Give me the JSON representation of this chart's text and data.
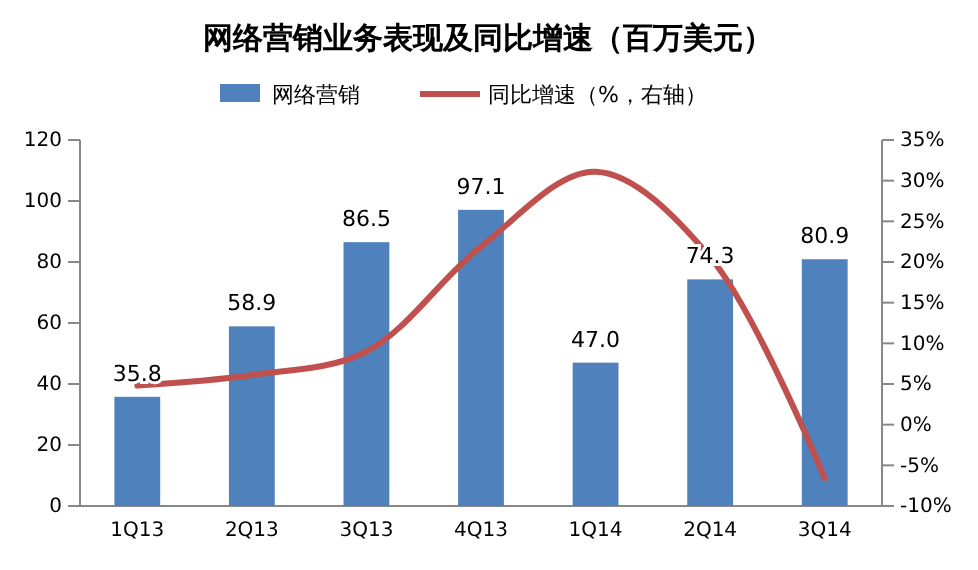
{
  "chart_data": {
    "type": "bar",
    "title": "网络营销业务表现及同比增速（百万美元）",
    "categories": [
      "1Q13",
      "2Q13",
      "3Q13",
      "4Q13",
      "1Q14",
      "2Q14",
      "3Q14"
    ],
    "series": [
      {
        "name": "网络营销",
        "color": "#4f81bd",
        "values": [
          35.8,
          58.9,
          86.5,
          97.1,
          47.0,
          74.3,
          80.9
        ],
        "value_labels": [
          "35.8",
          "58.9",
          "86.5",
          "97.1",
          "47.0",
          "74.3",
          "80.9"
        ]
      },
      {
        "name": "同比增速（%，右轴）",
        "type": "line",
        "axis": "y2",
        "color": "#c0504d",
        "values": [
          4.8,
          6.1,
          9,
          21.9,
          31.1,
          20.6,
          -6.6
        ]
      }
    ],
    "ylim": [
      0,
      120
    ],
    "yticks": [
      0,
      20,
      40,
      60,
      80,
      100,
      120
    ],
    "y2lim": [
      -10,
      35
    ],
    "y2ticks": [
      {
        "value": -10,
        "label": "-10%"
      },
      {
        "value": -5,
        "label": "-5%"
      },
      {
        "value": 0,
        "label": "0%"
      },
      {
        "value": 5,
        "label": "5%"
      },
      {
        "value": 10,
        "label": "10%"
      },
      {
        "value": 15,
        "label": "15%"
      },
      {
        "value": 20,
        "label": "20%"
      },
      {
        "value": 25,
        "label": "25%"
      },
      {
        "value": 30,
        "label": "30%"
      },
      {
        "value": 35,
        "label": "35%"
      }
    ],
    "legend": "top",
    "grid": false,
    "marker": "none",
    "line_style": "solid"
  }
}
